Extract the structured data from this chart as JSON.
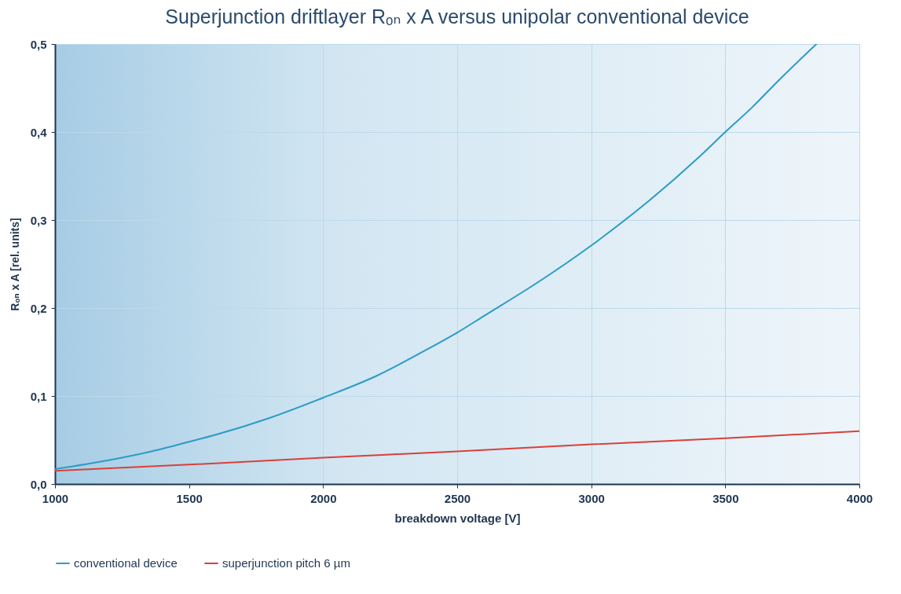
{
  "chart_data": {
    "type": "line",
    "title": "Superjunction driftlayer Rₒₙ x A versus unipolar conventional device",
    "xlabel": "breakdown voltage [V]",
    "ylabel": "Rₒₙ x A [rel. units]",
    "series": [
      {
        "name": "conventional device",
        "color": "#2b9cc6",
        "x": [
          1000,
          1200,
          1400,
          1500,
          1600,
          1800,
          2000,
          2200,
          2400,
          2500,
          2600,
          2800,
          3000,
          3200,
          3400,
          3500,
          3600,
          3700,
          3840
        ],
        "values": [
          0.017,
          0.027,
          0.04,
          0.048,
          0.056,
          0.075,
          0.098,
          0.123,
          0.155,
          0.172,
          0.191,
          0.229,
          0.271,
          0.318,
          0.371,
          0.4,
          0.428,
          0.459,
          0.5
        ]
      },
      {
        "name": "superjunction pitch 6 µm",
        "color": "#d9403a",
        "x": [
          1000,
          1500,
          2000,
          2500,
          3000,
          3500,
          4000
        ],
        "values": [
          0.015,
          0.022,
          0.03,
          0.037,
          0.045,
          0.052,
          0.06
        ]
      }
    ],
    "xlim": [
      1000,
      4000
    ],
    "xticks": [
      1000,
      1500,
      2000,
      2500,
      3000,
      3500,
      4000
    ],
    "ylim": [
      0,
      0.5
    ],
    "yticks": [
      {
        "value": 0,
        "label": "0,0"
      },
      {
        "value": 0.1,
        "label": "0,1"
      },
      {
        "value": 0.2,
        "label": "0,2"
      },
      {
        "value": 0.3,
        "label": "0,3"
      },
      {
        "value": 0.4,
        "label": "0,4"
      },
      {
        "value": 0.5,
        "label": "0,5"
      }
    ],
    "grid": true,
    "legend": "bottom",
    "marker": "none",
    "line_style": "solid"
  }
}
